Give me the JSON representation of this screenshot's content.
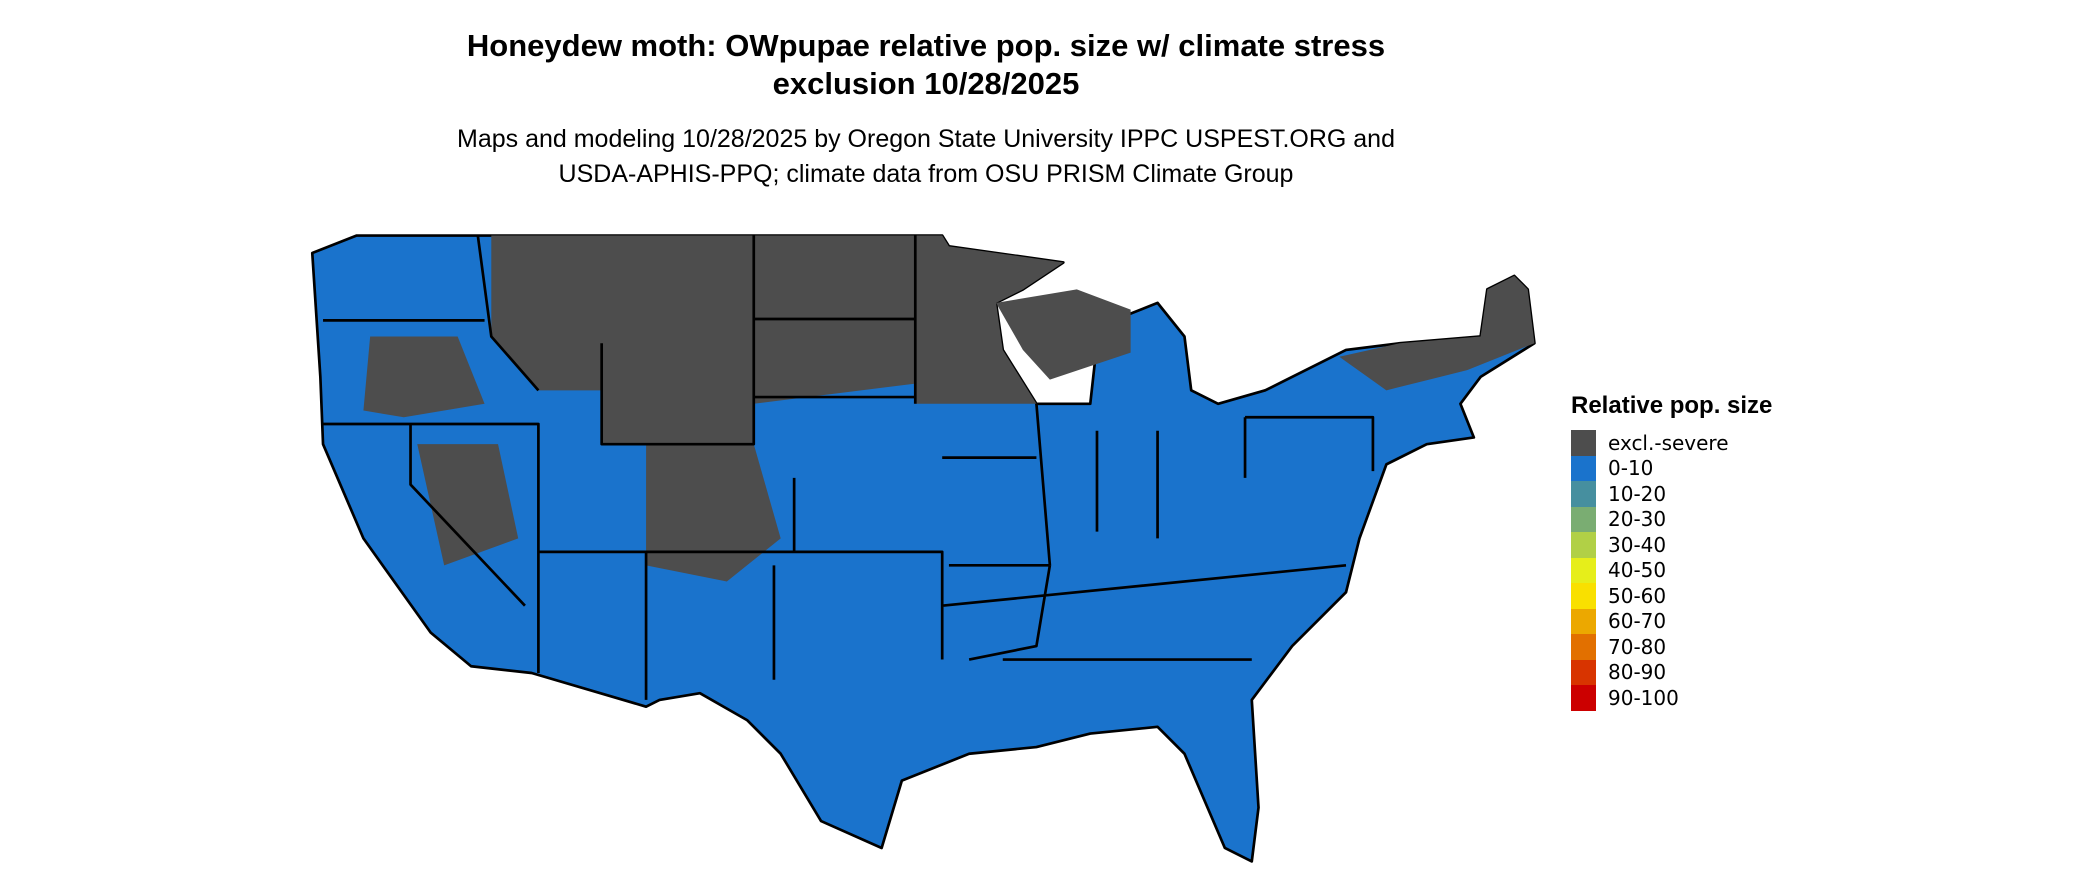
{
  "title": "Honeydew moth: OWpupae relative pop. size w/ climate stress exclusion 10/28/2025",
  "title_lines": [
    "Honeydew moth: OWpupae relative pop. size w/ climate stress",
    "exclusion 10/28/2025"
  ],
  "subtitle_lines": [
    "Maps and modeling 10/28/2025 by Oregon State University IPPC USPEST.ORG and",
    "USDA-APHIS-PPQ; climate data from OSU PRISM Climate Group"
  ],
  "map": {
    "region": "Conterminous United States",
    "dominant_category": "0-10",
    "secondary_category": "excl.-severe"
  },
  "legend": {
    "title": "Relative pop. size",
    "items": [
      {
        "label": "excl.-severe",
        "color": "#4d4d4d"
      },
      {
        "label": "0-10",
        "color": "#1a73cc"
      },
      {
        "label": "10-20",
        "color": "#468f9f"
      },
      {
        "label": "20-30",
        "color": "#7aad72"
      },
      {
        "label": "30-40",
        "color": "#b1d046"
      },
      {
        "label": "40-50",
        "color": "#e6ee1a"
      },
      {
        "label": "50-60",
        "color": "#f9e000"
      },
      {
        "label": "60-70",
        "color": "#eca800"
      },
      {
        "label": "70-80",
        "color": "#e27000"
      },
      {
        "label": "80-90",
        "color": "#d83400"
      },
      {
        "label": "90-100",
        "color": "#cc0000"
      }
    ]
  }
}
